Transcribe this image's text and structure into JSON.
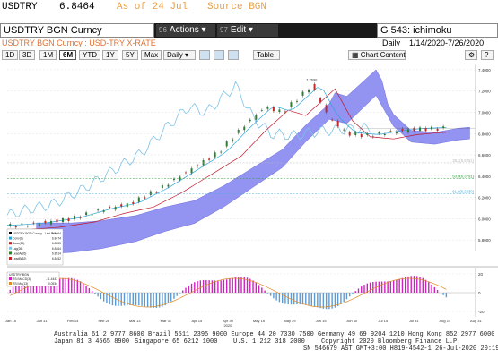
{
  "quote": {
    "ticker": "USDTRY",
    "price": "6.8464",
    "as_of": "As of 24 Jul",
    "source": "Source BGN"
  },
  "toolbar": {
    "security": "USDTRY BGN Curncy",
    "actions_num": "96",
    "actions_label": "Actions ▾",
    "edit_num": "97",
    "edit_label": "Edit ▾",
    "chart_name": "G 543: ichimoku"
  },
  "subbar": {
    "description": "USDTRY BGN Curncy : USD-TRY X-RATE",
    "frequency": "Daily",
    "date_range": "1/14/2020-7/26/2020"
  },
  "range_buttons": [
    "1D",
    "3D",
    "1M",
    "6M",
    "YTD",
    "1Y",
    "5Y",
    "Max"
  ],
  "range_active": "6M",
  "period_select": "Daily ▾",
  "table_label": "Table",
  "chart_content_label": "Chart Content",
  "colors": {
    "cloud": "#8080ee",
    "price": "#000000",
    "conversion": "#2aa6d9",
    "base": "#c0182c",
    "lagging": "#7ec3e6",
    "rsi_bar": "#d020c0",
    "rsi_line": "#e08a20"
  },
  "chart_data": {
    "type": "line",
    "y_axis_ticks": [
      "7.4000",
      "7.2000",
      "7.0000",
      "6.8000",
      "6.6000",
      "6.4000",
      "6.2000",
      "6.0000",
      "5.8000"
    ],
    "x_axis_ticks": [
      "Jan 15",
      "Jan 31",
      "Feb 14",
      "Feb 28",
      "Mar 13",
      "Mar 31",
      "Apr 15",
      "Apr 30\n2020",
      "May 15",
      "May 29",
      "Jun 15",
      "Jun 30",
      "Jul 15",
      "Jul 31",
      "Aug 14",
      "Aug 31"
    ],
    "fib_labels": [
      "38.2(6.5251)",
      "50.0(6.3791)",
      "61.8(6.2330)"
    ],
    "peak_label": "7.2690",
    "legend_title": "USDTRY BGN Curncy - Last Price",
    "legend": [
      {
        "name": "USDTRY BGN Curncy - Last Price",
        "value": "6.8464"
      },
      {
        "name": "Conv(9)",
        "value": "6.8474"
      },
      {
        "name": "Base(26)",
        "value": "6.8555"
      },
      {
        "name": "Lag(26)",
        "value": "6.8464"
      },
      {
        "name": "LeadA(26)",
        "value": "6.8514"
      },
      {
        "name": "LeadB(52)",
        "value": "6.8452"
      }
    ],
    "lower_legend_title": "USDTRY BGN",
    "lower_legend": [
      {
        "name": "RSI MACD(3)",
        "value": "-11.4447"
      },
      {
        "name": "RSI MA(13)",
        "value": "-0.0534"
      }
    ],
    "lower_axis_ticks": [
      "20",
      "0",
      "-20"
    ]
  },
  "footer": {
    "line1": "Australia 61 2 9777 8600 Brazil 5511 2395 9000 Europe 44 20 7330 7500 Germany 49 69 9204 1210 Hong Kong 852 2977 6000",
    "line2_left": "Japan 81 3 4565 8900",
    "line2_mid": "Singapore 65 6212 1000",
    "line2_mid2": "U.S. 1 212 318 2000",
    "line2_right": "Copyright 2020 Bloomberg Finance L.P.",
    "line3": "SN 546679 AST  GMT+3:00 H819-4542-1 26-Jul-2020 20:19:31"
  }
}
